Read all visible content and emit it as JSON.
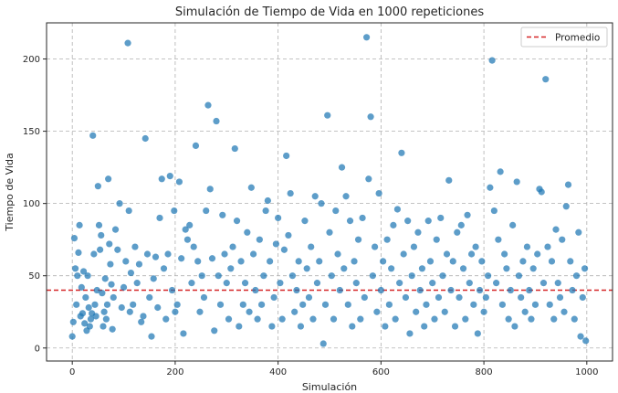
{
  "chart_data": {
    "type": "scatter",
    "title": "Simulación de Tiempo de Vida en 1000 repeticiones",
    "xlabel": "Simulación",
    "ylabel": "Tiempo de Vida",
    "xlim": [
      -50,
      1050
    ],
    "ylim": [
      -9,
      225
    ],
    "x_ticks": [
      0,
      200,
      400,
      600,
      800,
      1000
    ],
    "y_ticks": [
      0,
      50,
      100,
      150,
      200
    ],
    "grid": true,
    "legend": {
      "position": "top-right",
      "entries": [
        "Promedio"
      ]
    },
    "colors": {
      "points": "#1f77b4",
      "mean_line": "#d62728"
    },
    "reference_lines": [
      {
        "name": "Promedio",
        "y": 40,
        "style": "dashed"
      }
    ],
    "series": [
      {
        "values": [
          [
            0,
            8
          ],
          [
            2,
            18
          ],
          [
            4,
            76
          ],
          [
            6,
            55
          ],
          [
            8,
            30
          ],
          [
            10,
            50
          ],
          [
            12,
            66
          ],
          [
            14,
            85
          ],
          [
            16,
            22
          ],
          [
            18,
            42
          ],
          [
            20,
            24
          ],
          [
            22,
            53
          ],
          [
            24,
            17
          ],
          [
            26,
            35
          ],
          [
            28,
            12
          ],
          [
            30,
            50
          ],
          [
            32,
            28
          ],
          [
            34,
            15
          ],
          [
            36,
            20
          ],
          [
            38,
            24
          ],
          [
            40,
            147
          ],
          [
            42,
            65
          ],
          [
            44,
            30
          ],
          [
            46,
            22
          ],
          [
            48,
            40
          ],
          [
            50,
            112
          ],
          [
            52,
            85
          ],
          [
            54,
            68
          ],
          [
            56,
            78
          ],
          [
            58,
            38
          ],
          [
            60,
            15
          ],
          [
            62,
            25
          ],
          [
            64,
            48
          ],
          [
            66,
            20
          ],
          [
            68,
            30
          ],
          [
            70,
            117
          ],
          [
            72,
            72
          ],
          [
            74,
            58
          ],
          [
            76,
            44
          ],
          [
            78,
            13
          ],
          [
            80,
            35
          ],
          [
            84,
            82
          ],
          [
            88,
            68
          ],
          [
            92,
            100
          ],
          [
            96,
            28
          ],
          [
            100,
            42
          ],
          [
            104,
            60
          ],
          [
            108,
            211
          ],
          [
            110,
            95
          ],
          [
            112,
            25
          ],
          [
            114,
            52
          ],
          [
            118,
            30
          ],
          [
            122,
            70
          ],
          [
            126,
            45
          ],
          [
            130,
            58
          ],
          [
            134,
            18
          ],
          [
            138,
            22
          ],
          [
            142,
            145
          ],
          [
            146,
            65
          ],
          [
            150,
            35
          ],
          [
            154,
            8
          ],
          [
            158,
            48
          ],
          [
            162,
            63
          ],
          [
            166,
            28
          ],
          [
            170,
            90
          ],
          [
            174,
            117
          ],
          [
            178,
            55
          ],
          [
            182,
            20
          ],
          [
            186,
            65
          ],
          [
            190,
            119
          ],
          [
            194,
            40
          ],
          [
            198,
            95
          ],
          [
            200,
            25
          ],
          [
            204,
            30
          ],
          [
            208,
            115
          ],
          [
            212,
            62
          ],
          [
            216,
            10
          ],
          [
            220,
            82
          ],
          [
            224,
            75
          ],
          [
            228,
            85
          ],
          [
            232,
            45
          ],
          [
            236,
            70
          ],
          [
            240,
            140
          ],
          [
            244,
            60
          ],
          [
            248,
            25
          ],
          [
            252,
            50
          ],
          [
            256,
            35
          ],
          [
            260,
            95
          ],
          [
            264,
            168
          ],
          [
            268,
            110
          ],
          [
            272,
            62
          ],
          [
            276,
            12
          ],
          [
            280,
            157
          ],
          [
            284,
            50
          ],
          [
            288,
            30
          ],
          [
            292,
            92
          ],
          [
            296,
            65
          ],
          [
            300,
            45
          ],
          [
            304,
            20
          ],
          [
            308,
            55
          ],
          [
            312,
            70
          ],
          [
            316,
            138
          ],
          [
            320,
            88
          ],
          [
            324,
            15
          ],
          [
            328,
            60
          ],
          [
            332,
            30
          ],
          [
            336,
            45
          ],
          [
            340,
            80
          ],
          [
            344,
            25
          ],
          [
            348,
            111
          ],
          [
            352,
            65
          ],
          [
            356,
            40
          ],
          [
            360,
            20
          ],
          [
            364,
            75
          ],
          [
            368,
            30
          ],
          [
            372,
            50
          ],
          [
            376,
            95
          ],
          [
            380,
            102
          ],
          [
            384,
            60
          ],
          [
            388,
            15
          ],
          [
            392,
            35
          ],
          [
            396,
            72
          ],
          [
            400,
            90
          ],
          [
            404,
            45
          ],
          [
            408,
            20
          ],
          [
            412,
            68
          ],
          [
            416,
            133
          ],
          [
            420,
            78
          ],
          [
            424,
            107
          ],
          [
            428,
            50
          ],
          [
            432,
            25
          ],
          [
            436,
            40
          ],
          [
            440,
            60
          ],
          [
            444,
            15
          ],
          [
            448,
            30
          ],
          [
            452,
            88
          ],
          [
            456,
            55
          ],
          [
            460,
            35
          ],
          [
            464,
            70
          ],
          [
            468,
            20
          ],
          [
            472,
            105
          ],
          [
            476,
            45
          ],
          [
            480,
            60
          ],
          [
            484,
            100
          ],
          [
            488,
            3
          ],
          [
            492,
            30
          ],
          [
            496,
            161
          ],
          [
            500,
            80
          ],
          [
            504,
            50
          ],
          [
            508,
            20
          ],
          [
            512,
            95
          ],
          [
            516,
            65
          ],
          [
            520,
            40
          ],
          [
            524,
            125
          ],
          [
            528,
            55
          ],
          [
            532,
            105
          ],
          [
            536,
            30
          ],
          [
            540,
            88
          ],
          [
            544,
            15
          ],
          [
            548,
            60
          ],
          [
            552,
            45
          ],
          [
            556,
            75
          ],
          [
            560,
            20
          ],
          [
            564,
            90
          ],
          [
            568,
            35
          ],
          [
            572,
            215
          ],
          [
            576,
            117
          ],
          [
            580,
            160
          ],
          [
            584,
            50
          ],
          [
            588,
            70
          ],
          [
            592,
            25
          ],
          [
            596,
            107
          ],
          [
            600,
            40
          ],
          [
            604,
            60
          ],
          [
            608,
            15
          ],
          [
            612,
            75
          ],
          [
            616,
            30
          ],
          [
            620,
            55
          ],
          [
            624,
            85
          ],
          [
            628,
            20
          ],
          [
            632,
            96
          ],
          [
            636,
            45
          ],
          [
            640,
            135
          ],
          [
            644,
            65
          ],
          [
            648,
            35
          ],
          [
            652,
            88
          ],
          [
            656,
            10
          ],
          [
            660,
            50
          ],
          [
            664,
            70
          ],
          [
            668,
            25
          ],
          [
            672,
            80
          ],
          [
            676,
            40
          ],
          [
            680,
            55
          ],
          [
            684,
            15
          ],
          [
            688,
            30
          ],
          [
            692,
            88
          ],
          [
            696,
            60
          ],
          [
            700,
            45
          ],
          [
            704,
            20
          ],
          [
            708,
            75
          ],
          [
            712,
            35
          ],
          [
            716,
            90
          ],
          [
            720,
            50
          ],
          [
            724,
            25
          ],
          [
            728,
            65
          ],
          [
            732,
            116
          ],
          [
            736,
            40
          ],
          [
            740,
            60
          ],
          [
            744,
            15
          ],
          [
            748,
            80
          ],
          [
            752,
            35
          ],
          [
            756,
            85
          ],
          [
            760,
            55
          ],
          [
            764,
            20
          ],
          [
            768,
            92
          ],
          [
            772,
            45
          ],
          [
            776,
            65
          ],
          [
            780,
            30
          ],
          [
            784,
            70
          ],
          [
            788,
            10
          ],
          [
            792,
            40
          ],
          [
            796,
            60
          ],
          [
            800,
            25
          ],
          [
            804,
            35
          ],
          [
            808,
            50
          ],
          [
            812,
            111
          ],
          [
            816,
            199
          ],
          [
            820,
            95
          ],
          [
            824,
            45
          ],
          [
            828,
            75
          ],
          [
            832,
            122
          ],
          [
            836,
            30
          ],
          [
            840,
            65
          ],
          [
            844,
            55
          ],
          [
            848,
            20
          ],
          [
            852,
            40
          ],
          [
            856,
            85
          ],
          [
            860,
            15
          ],
          [
            864,
            115
          ],
          [
            868,
            50
          ],
          [
            872,
            35
          ],
          [
            876,
            60
          ],
          [
            880,
            25
          ],
          [
            884,
            70
          ],
          [
            888,
            40
          ],
          [
            892,
            20
          ],
          [
            896,
            55
          ],
          [
            900,
            30
          ],
          [
            904,
            65
          ],
          [
            908,
            110
          ],
          [
            912,
            108
          ],
          [
            916,
            45
          ],
          [
            920,
            186
          ],
          [
            924,
            70
          ],
          [
            928,
            30
          ],
          [
            932,
            60
          ],
          [
            936,
            20
          ],
          [
            940,
            82
          ],
          [
            944,
            45
          ],
          [
            948,
            35
          ],
          [
            952,
            75
          ],
          [
            956,
            25
          ],
          [
            960,
            98
          ],
          [
            964,
            113
          ],
          [
            968,
            60
          ],
          [
            972,
            40
          ],
          [
            976,
            20
          ],
          [
            980,
            50
          ],
          [
            984,
            80
          ],
          [
            988,
            8
          ],
          [
            992,
            35
          ],
          [
            996,
            55
          ],
          [
            998,
            5
          ]
        ]
      }
    ]
  }
}
